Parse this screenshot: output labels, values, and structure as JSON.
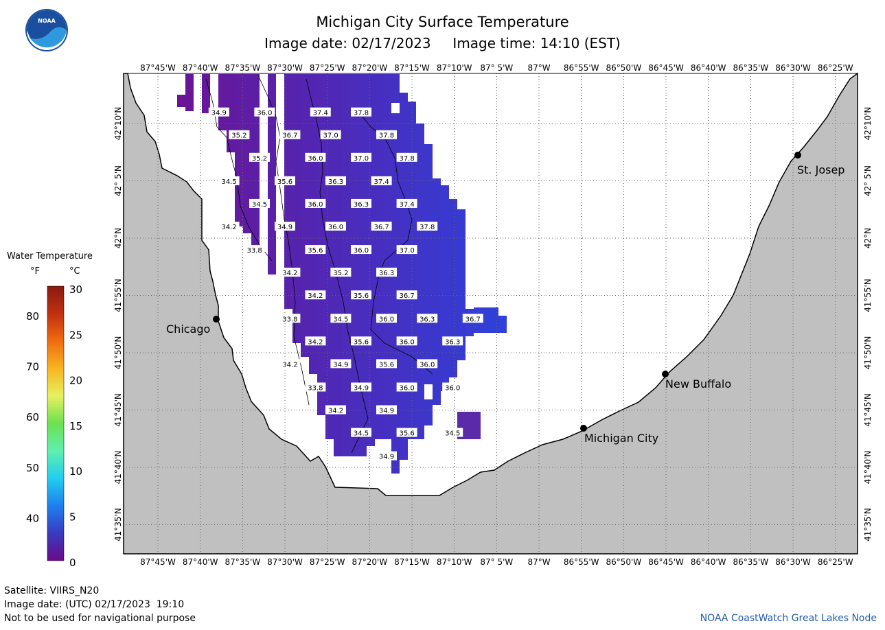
{
  "header": {
    "title": "Michigan City Surface Temperature",
    "image_date_label": "Image date:",
    "image_date": "02/17/2023",
    "image_time_label": "Image time:",
    "image_time": "14:10 (EST)"
  },
  "logo": {
    "text": "NOAA",
    "icon": "noaa-logo-icon"
  },
  "legend": {
    "title": "Water Temperature",
    "unit_f": "°F",
    "unit_c": "°C",
    "f_ticks": [
      "80",
      "70",
      "60",
      "50",
      "40"
    ],
    "c_ticks": [
      "30",
      "25",
      "20",
      "15",
      "10",
      "5",
      "0"
    ],
    "colors_bottom_to_top": [
      "#6a0a8a",
      "#3a3ac0",
      "#1e7ff0",
      "#22cdf0",
      "#5ff0b0",
      "#6ce050",
      "#e6f060",
      "#f7b520",
      "#f06c10",
      "#c03010",
      "#8a1a10"
    ]
  },
  "axes": {
    "lon_labels": [
      "87°45'W",
      "87°40'W",
      "87°35'W",
      "87°30'W",
      "87°25'W",
      "87°20'W",
      "87°15'W",
      "87°10'W",
      "87° 5'W",
      "87°W",
      "86°55'W",
      "86°50'W",
      "86°45'W",
      "86°40'W",
      "86°35'W",
      "86°30'W",
      "86°25'W"
    ],
    "lat_labels": [
      "42°10'N",
      "42° 5'N",
      "42°N",
      "41°55'N",
      "41°50'N",
      "41°45'N",
      "41°40'N",
      "41°35'N"
    ]
  },
  "cities": [
    {
      "name": "Chicago"
    },
    {
      "name": "St. Josep"
    },
    {
      "name": "New Buffalo"
    },
    {
      "name": "Michigan City"
    }
  ],
  "temperature_labels": [
    {
      "v": "34.9",
      "lon": -87.63,
      "lat": 42.183
    },
    {
      "v": "36.0",
      "lon": -87.54,
      "lat": 42.183
    },
    {
      "v": "37.4",
      "lon": -87.43,
      "lat": 42.183
    },
    {
      "v": "37.8",
      "lon": -87.35,
      "lat": 42.183
    },
    {
      "v": "35.2",
      "lon": -87.59,
      "lat": 42.15
    },
    {
      "v": "36.7",
      "lon": -87.49,
      "lat": 42.15
    },
    {
      "v": "37.0",
      "lon": -87.41,
      "lat": 42.15
    },
    {
      "v": "37.8",
      "lon": -87.3,
      "lat": 42.15
    },
    {
      "v": "35.2",
      "lon": -87.55,
      "lat": 42.117
    },
    {
      "v": "36.0",
      "lon": -87.44,
      "lat": 42.117
    },
    {
      "v": "37.0",
      "lon": -87.35,
      "lat": 42.117
    },
    {
      "v": "37.8",
      "lon": -87.26,
      "lat": 42.117
    },
    {
      "v": "34.5",
      "lon": -87.61,
      "lat": 42.083
    },
    {
      "v": "35.6",
      "lon": -87.5,
      "lat": 42.083
    },
    {
      "v": "36.3",
      "lon": -87.4,
      "lat": 42.083
    },
    {
      "v": "37.4",
      "lon": -87.31,
      "lat": 42.083
    },
    {
      "v": "34.5",
      "lon": -87.55,
      "lat": 42.05
    },
    {
      "v": "36.0",
      "lon": -87.44,
      "lat": 42.05
    },
    {
      "v": "36.3",
      "lon": -87.35,
      "lat": 42.05
    },
    {
      "v": "37.4",
      "lon": -87.26,
      "lat": 42.05
    },
    {
      "v": "34.2",
      "lon": -87.61,
      "lat": 42.017
    },
    {
      "v": "34.9",
      "lon": -87.5,
      "lat": 42.017
    },
    {
      "v": "36.0",
      "lon": -87.4,
      "lat": 42.017
    },
    {
      "v": "36.7",
      "lon": -87.31,
      "lat": 42.017
    },
    {
      "v": "37.8",
      "lon": -87.22,
      "lat": 42.017
    },
    {
      "v": "33.8",
      "lon": -87.56,
      "lat": 41.983
    },
    {
      "v": "35.6",
      "lon": -87.44,
      "lat": 41.983
    },
    {
      "v": "36.0",
      "lon": -87.35,
      "lat": 41.983
    },
    {
      "v": "37.0",
      "lon": -87.26,
      "lat": 41.983
    },
    {
      "v": "34.2",
      "lon": -87.49,
      "lat": 41.95
    },
    {
      "v": "35.2",
      "lon": -87.39,
      "lat": 41.95
    },
    {
      "v": "36.3",
      "lon": -87.3,
      "lat": 41.95
    },
    {
      "v": "34.2",
      "lon": -87.44,
      "lat": 41.917
    },
    {
      "v": "35.6",
      "lon": -87.35,
      "lat": 41.917
    },
    {
      "v": "36.7",
      "lon": -87.26,
      "lat": 41.917
    },
    {
      "v": "33.8",
      "lon": -87.49,
      "lat": 41.883
    },
    {
      "v": "34.5",
      "lon": -87.39,
      "lat": 41.883
    },
    {
      "v": "36.0",
      "lon": -87.3,
      "lat": 41.883
    },
    {
      "v": "36.3",
      "lon": -87.22,
      "lat": 41.883
    },
    {
      "v": "36.7",
      "lon": -87.13,
      "lat": 41.883
    },
    {
      "v": "34.2",
      "lon": -87.44,
      "lat": 41.85
    },
    {
      "v": "35.6",
      "lon": -87.35,
      "lat": 41.85
    },
    {
      "v": "36.0",
      "lon": -87.26,
      "lat": 41.85
    },
    {
      "v": "36.3",
      "lon": -87.17,
      "lat": 41.85
    },
    {
      "v": "34.2",
      "lon": -87.49,
      "lat": 41.817
    },
    {
      "v": "34.9",
      "lon": -87.39,
      "lat": 41.817
    },
    {
      "v": "35.6",
      "lon": -87.3,
      "lat": 41.817
    },
    {
      "v": "36.0",
      "lon": -87.22,
      "lat": 41.817
    },
    {
      "v": "33.8",
      "lon": -87.44,
      "lat": 41.783
    },
    {
      "v": "34.9",
      "lon": -87.35,
      "lat": 41.783
    },
    {
      "v": "36.0",
      "lon": -87.26,
      "lat": 41.783
    },
    {
      "v": "36.0",
      "lon": -87.17,
      "lat": 41.783
    },
    {
      "v": "34.2",
      "lon": -87.4,
      "lat": 41.75
    },
    {
      "v": "34.9",
      "lon": -87.3,
      "lat": 41.75
    },
    {
      "v": "34.5",
      "lon": -87.35,
      "lat": 41.717
    },
    {
      "v": "35.6",
      "lon": -87.26,
      "lat": 41.717
    },
    {
      "v": "34.5",
      "lon": -87.17,
      "lat": 41.717
    },
    {
      "v": "34.9",
      "lon": -87.3,
      "lat": 41.683
    }
  ],
  "footer": {
    "satellite": "Satellite: VIIRS_N20",
    "utc_date": "Image date: (UTC) 02/17/2023  19:10",
    "warning": "Not to be used for navigational purpose",
    "credit": "NOAA CoastWatch Great Lakes Node"
  }
}
